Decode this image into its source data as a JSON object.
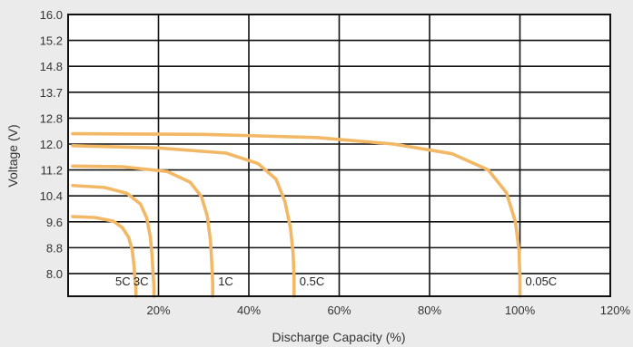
{
  "chart_data": {
    "type": "line",
    "title": "",
    "xlabel": "Discharge Capacity (%)",
    "ylabel": "Voltage (V)",
    "xlim": [
      0,
      120
    ],
    "ylim": [
      7.3,
      16.0
    ],
    "x_ticks": [
      "20%",
      "40%",
      "60%",
      "80%",
      "100%",
      "120%"
    ],
    "y_ticks": [
      "16.0",
      "15.2",
      "14.8",
      "13.7",
      "12.8",
      "12.0",
      "11.2",
      "10.4",
      "9.6",
      "8.8",
      "8.0"
    ],
    "grid": true,
    "colors": {
      "series": "#f2b866",
      "background": "#ebebeb",
      "plot": "#ffffff",
      "grid": "#111111"
    },
    "series": [
      {
        "name": "5C",
        "x": [
          1,
          6,
          10,
          12,
          13.4,
          14.2,
          14.6,
          14.8,
          15,
          15
        ],
        "y": [
          9.76,
          9.73,
          9.62,
          9.42,
          9.12,
          8.72,
          8.22,
          7.82,
          7.55,
          7.3
        ]
      },
      {
        "name": "3C",
        "x": [
          1,
          8,
          13,
          16,
          17.4,
          18.2,
          18.6,
          18.8,
          19,
          19
        ],
        "y": [
          10.72,
          10.66,
          10.48,
          10.15,
          9.72,
          9.12,
          8.52,
          8.0,
          7.6,
          7.3
        ]
      },
      {
        "name": "1C",
        "x": [
          1,
          12,
          22,
          27,
          29.5,
          30.8,
          31.5,
          31.8,
          32,
          32
        ],
        "y": [
          11.32,
          11.3,
          11.15,
          10.82,
          10.38,
          9.78,
          9.02,
          8.32,
          7.72,
          7.3
        ]
      },
      {
        "name": "0.5C",
        "x": [
          1,
          20,
          35,
          42,
          46,
          48,
          49.2,
          49.8,
          50,
          50
        ],
        "y": [
          11.95,
          11.88,
          11.72,
          11.4,
          10.92,
          10.22,
          9.42,
          8.62,
          7.9,
          7.3
        ]
      },
      {
        "name": "0.05C",
        "x": [
          1,
          30,
          55,
          72,
          85,
          93,
          97,
          99,
          99.8,
          100,
          100
        ],
        "y": [
          12.32,
          12.3,
          12.2,
          12.0,
          11.7,
          11.2,
          10.5,
          9.6,
          8.7,
          7.9,
          7.3
        ]
      }
    ]
  }
}
